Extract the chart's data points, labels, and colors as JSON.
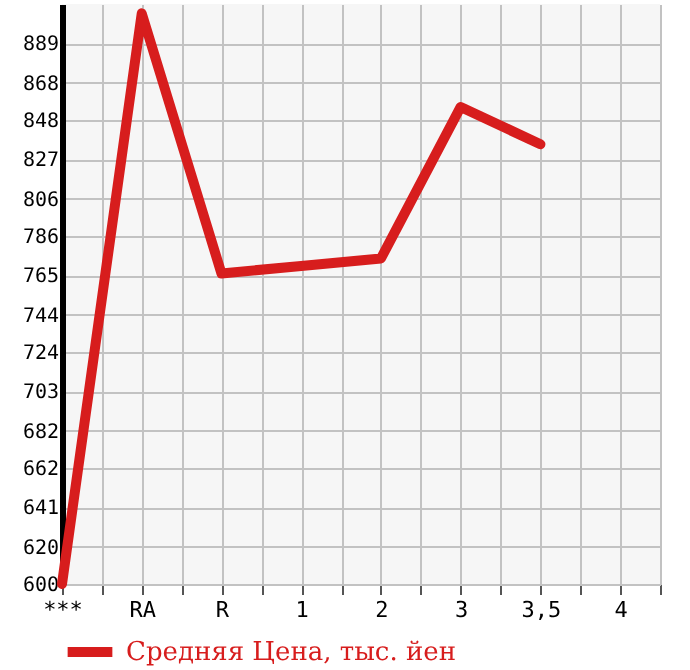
{
  "chart_data": {
    "type": "line",
    "categories": [
      "***",
      "RA",
      "R",
      "1",
      "2",
      "3",
      "3,5",
      "4"
    ],
    "series": [
      {
        "name": "Средняя Цена, тыс. йен",
        "color": "#d71d1d",
        "values": [
          600,
          905,
          766,
          770,
          774,
          855,
          835,
          null
        ]
      }
    ],
    "ylim": [
      600,
      910
    ],
    "yticks": [
      600,
      620,
      641,
      662,
      682,
      703,
      724,
      744,
      765,
      786,
      806,
      827,
      848,
      868,
      889
    ],
    "grid": true,
    "legend": "bottom left",
    "marker": "none",
    "line_style": "solid"
  }
}
